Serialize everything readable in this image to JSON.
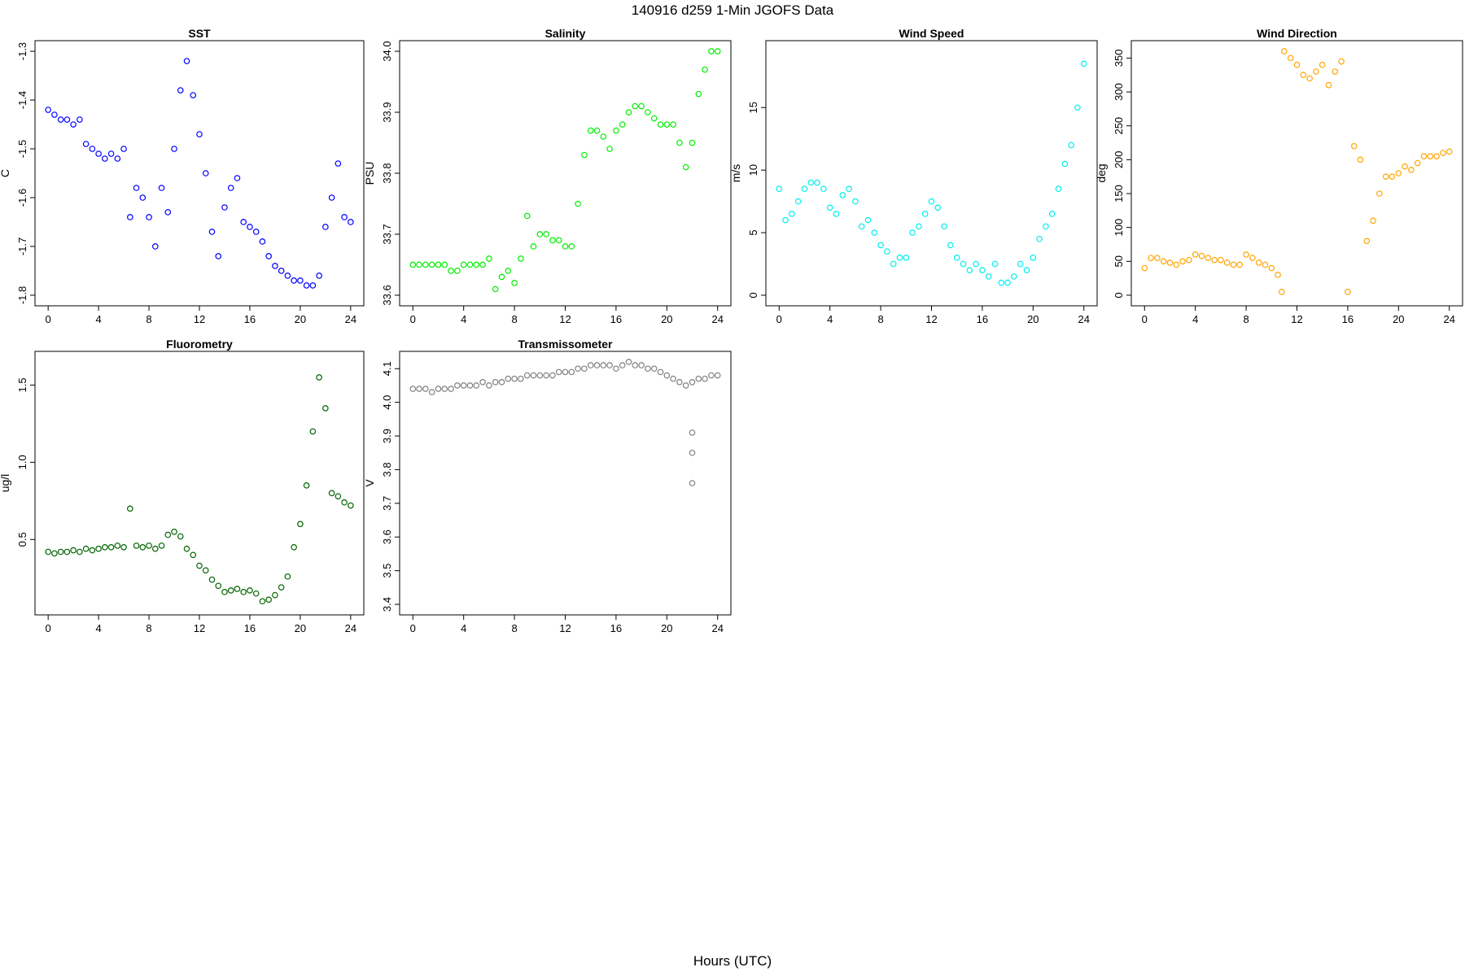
{
  "figure": {
    "title": "140916   d259   1-Min  JGOFS Data",
    "xlabel": "Hours (UTC)"
  },
  "chart_data": [
    {
      "type": "scatter",
      "title": "SST",
      "ylabel": "C",
      "color": "#0000ff",
      "xlim": [
        0,
        24
      ],
      "ylim": [
        -1.8,
        -1.3
      ],
      "xticks": [
        "0",
        "4",
        "8",
        "12",
        "16",
        "20",
        "24"
      ],
      "yticks": [
        "-1.8",
        "-1.7",
        "-1.6",
        "-1.5",
        "-1.4",
        "-1.3"
      ],
      "x": [
        0,
        0.5,
        1,
        1.5,
        2,
        2.5,
        3,
        3.5,
        4,
        4.5,
        5,
        5.5,
        6,
        6.5,
        7,
        7.5,
        8,
        8.5,
        9,
        9.5,
        10,
        10.5,
        11,
        11.5,
        12,
        12.5,
        13,
        13.5,
        14,
        14.5,
        15,
        15.5,
        16,
        16.5,
        17,
        17.5,
        18,
        18.5,
        19,
        19.5,
        20,
        20.5,
        21,
        21.5,
        22,
        22.5,
        23,
        23.5,
        24
      ],
      "y": [
        -1.42,
        -1.43,
        -1.44,
        -1.44,
        -1.45,
        -1.44,
        -1.49,
        -1.5,
        -1.51,
        -1.52,
        -1.51,
        -1.52,
        -1.5,
        -1.64,
        -1.58,
        -1.6,
        -1.64,
        -1.7,
        -1.58,
        -1.63,
        -1.5,
        -1.38,
        -1.32,
        -1.39,
        -1.47,
        -1.55,
        -1.67,
        -1.72,
        -1.62,
        -1.58,
        -1.56,
        -1.65,
        -1.66,
        -1.67,
        -1.69,
        -1.72,
        -1.74,
        -1.75,
        -1.76,
        -1.77,
        -1.77,
        -1.78,
        -1.78,
        -1.76,
        -1.66,
        -1.6,
        -1.53,
        -1.64,
        -1.65
      ]
    },
    {
      "type": "scatter",
      "title": "Salinity",
      "ylabel": "PSU",
      "color": "#00ee00",
      "xlim": [
        0,
        24
      ],
      "ylim": [
        33.6,
        34.0
      ],
      "xticks": [
        "0",
        "4",
        "8",
        "12",
        "16",
        "20",
        "24"
      ],
      "yticks": [
        "33.6",
        "33.7",
        "33.8",
        "33.9",
        "34.0"
      ],
      "x": [
        0,
        0.5,
        1,
        1.5,
        2,
        2.5,
        3,
        3.5,
        4,
        4.5,
        5,
        5.5,
        6,
        6.5,
        7,
        7.5,
        8,
        8.5,
        9,
        9.5,
        10,
        10.5,
        11,
        11.5,
        12,
        12.5,
        13,
        13.5,
        14,
        14.5,
        15,
        15.5,
        16,
        16.5,
        17,
        17.5,
        18,
        18.5,
        19,
        19.5,
        20,
        20.5,
        21,
        21.5,
        22,
        22.5,
        23,
        23.5,
        24
      ],
      "y": [
        33.65,
        33.65,
        33.65,
        33.65,
        33.65,
        33.65,
        33.64,
        33.64,
        33.65,
        33.65,
        33.65,
        33.65,
        33.66,
        33.61,
        33.63,
        33.64,
        33.62,
        33.66,
        33.73,
        33.68,
        33.7,
        33.7,
        33.69,
        33.69,
        33.68,
        33.68,
        33.75,
        33.83,
        33.87,
        33.87,
        33.86,
        33.84,
        33.87,
        33.88,
        33.9,
        33.91,
        33.91,
        33.9,
        33.89,
        33.88,
        33.88,
        33.88,
        33.85,
        33.81,
        33.85,
        33.93,
        33.97,
        34.0,
        34.0
      ]
    },
    {
      "type": "scatter",
      "title": "Wind Speed",
      "ylabel": "m/s",
      "color": "#00eeee",
      "xlim": [
        0,
        24
      ],
      "ylim": [
        0,
        19.5
      ],
      "xticks": [
        "0",
        "4",
        "8",
        "12",
        "16",
        "20",
        "24"
      ],
      "yticks": [
        "0",
        "5",
        "10",
        "15"
      ],
      "x": [
        0,
        0.5,
        1,
        1.5,
        2,
        2.5,
        3,
        3.5,
        4,
        4.5,
        5,
        5.5,
        6,
        6.5,
        7,
        7.5,
        8,
        8.5,
        9,
        9.5,
        10,
        10.5,
        11,
        11.5,
        12,
        12.5,
        13,
        13.5,
        14,
        14.5,
        15,
        15.5,
        16,
        16.5,
        17,
        17.5,
        18,
        18.5,
        19,
        19.5,
        20,
        20.5,
        21,
        21.5,
        22,
        22.5,
        23,
        23.5,
        24
      ],
      "y": [
        8.5,
        6,
        6.5,
        7.5,
        8.5,
        9,
        9,
        8.5,
        7,
        6.5,
        8,
        8.5,
        7.5,
        5.5,
        6,
        5,
        4,
        3.5,
        2.5,
        3,
        3,
        5,
        5.5,
        6.5,
        7.5,
        7,
        5.5,
        4,
        3,
        2.5,
        2,
        2.5,
        2,
        1.5,
        2.5,
        1,
        1,
        1.5,
        2.5,
        2,
        3,
        4.5,
        5.5,
        6.5,
        8.5,
        10.5,
        12,
        15,
        18.5
      ]
    },
    {
      "type": "scatter",
      "title": "Wind Direction",
      "ylabel": "deg",
      "color": "#ffa500",
      "xlim": [
        0,
        24
      ],
      "ylim": [
        0,
        360
      ],
      "xticks": [
        "0",
        "4",
        "8",
        "12",
        "16",
        "20",
        "24"
      ],
      "yticks": [
        "0",
        "50",
        "100",
        "150",
        "200",
        "250",
        "300",
        "350"
      ],
      "x": [
        0,
        0.5,
        1,
        1.5,
        2,
        2.5,
        3,
        3.5,
        4,
        4.5,
        5,
        5.5,
        6,
        6.5,
        7,
        7.5,
        8,
        8.5,
        9,
        9.5,
        10,
        10.5,
        10.8,
        11,
        11.5,
        12,
        12.5,
        13,
        13.5,
        14,
        14.5,
        15,
        15.5,
        16,
        16.5,
        17,
        17.5,
        18,
        18.5,
        19,
        19.5,
        20,
        20.5,
        21,
        21.5,
        22,
        22.5,
        23,
        23.5,
        24
      ],
      "y": [
        40,
        55,
        55,
        50,
        48,
        45,
        50,
        52,
        60,
        58,
        55,
        52,
        52,
        48,
        45,
        45,
        60,
        55,
        48,
        45,
        40,
        30,
        5,
        360,
        350,
        340,
        325,
        320,
        330,
        340,
        310,
        330,
        345,
        5,
        220,
        200,
        80,
        110,
        150,
        175,
        175,
        180,
        190,
        185,
        195,
        205,
        205,
        205,
        210,
        212
      ]
    },
    {
      "type": "scatter",
      "title": "Fluorometry",
      "ylabel": "ug/l",
      "color": "#006400",
      "xlim": [
        0,
        24
      ],
      "ylim": [
        0.08,
        1.65
      ],
      "xticks": [
        "0",
        "4",
        "8",
        "12",
        "16",
        "20",
        "24"
      ],
      "yticks": [
        "0.5",
        "1.0",
        "1.5"
      ],
      "x": [
        0,
        0.5,
        1,
        1.5,
        2,
        2.5,
        3,
        3.5,
        4,
        4.5,
        5,
        5.5,
        6,
        6.5,
        7,
        7.5,
        8,
        8.5,
        9,
        9.5,
        10,
        10.5,
        11,
        11.5,
        12,
        12.5,
        13,
        13.5,
        14,
        14.5,
        15,
        15.5,
        16,
        16.5,
        17,
        17.5,
        18,
        18.5,
        19,
        19.5,
        20,
        20.5,
        21,
        21.5,
        22,
        22.5,
        23,
        23.5,
        24
      ],
      "y": [
        0.42,
        0.41,
        0.42,
        0.42,
        0.43,
        0.42,
        0.44,
        0.43,
        0.44,
        0.45,
        0.45,
        0.46,
        0.45,
        0.7,
        0.46,
        0.45,
        0.46,
        0.44,
        0.46,
        0.53,
        0.55,
        0.52,
        0.44,
        0.4,
        0.33,
        0.3,
        0.24,
        0.2,
        0.16,
        0.17,
        0.18,
        0.16,
        0.17,
        0.15,
        0.1,
        0.11,
        0.14,
        0.19,
        0.26,
        0.45,
        0.6,
        0.85,
        1.2,
        1.55,
        1.35,
        0.8,
        0.78,
        0.74,
        0.72
      ]
    },
    {
      "type": "scatter",
      "title": "Transmissometer",
      "ylabel": "V",
      "color": "#808080",
      "xlim": [
        0,
        24
      ],
      "ylim": [
        3.4,
        4.12
      ],
      "xticks": [
        "0",
        "4",
        "8",
        "12",
        "16",
        "20",
        "24"
      ],
      "yticks": [
        "3.4",
        "3.5",
        "3.6",
        "3.7",
        "3.8",
        "3.9",
        "4.0",
        "4.1"
      ],
      "x": [
        0,
        0.5,
        1,
        1.5,
        2,
        2.5,
        3,
        3.5,
        4,
        4.5,
        5,
        5.5,
        6,
        6.5,
        7,
        7.5,
        8,
        8.5,
        9,
        9.5,
        10,
        10.5,
        11,
        11.5,
        12,
        12.5,
        13,
        13.5,
        14,
        14.5,
        15,
        15.5,
        16,
        16.5,
        17,
        17.5,
        18,
        18.5,
        19,
        19.5,
        20,
        20.5,
        21,
        21.5,
        22,
        22,
        22,
        22,
        22.5,
        23,
        23.5,
        24
      ],
      "y": [
        4.04,
        4.04,
        4.04,
        4.03,
        4.04,
        4.04,
        4.04,
        4.05,
        4.05,
        4.05,
        4.05,
        4.06,
        4.05,
        4.06,
        4.06,
        4.07,
        4.07,
        4.07,
        4.08,
        4.08,
        4.08,
        4.08,
        4.08,
        4.09,
        4.09,
        4.09,
        4.1,
        4.1,
        4.11,
        4.11,
        4.11,
        4.11,
        4.1,
        4.11,
        4.12,
        4.11,
        4.11,
        4.1,
        4.1,
        4.09,
        4.08,
        4.07,
        4.06,
        4.05,
        4.06,
        3.91,
        3.85,
        3.76,
        4.07,
        4.07,
        4.08,
        4.08
      ]
    }
  ]
}
